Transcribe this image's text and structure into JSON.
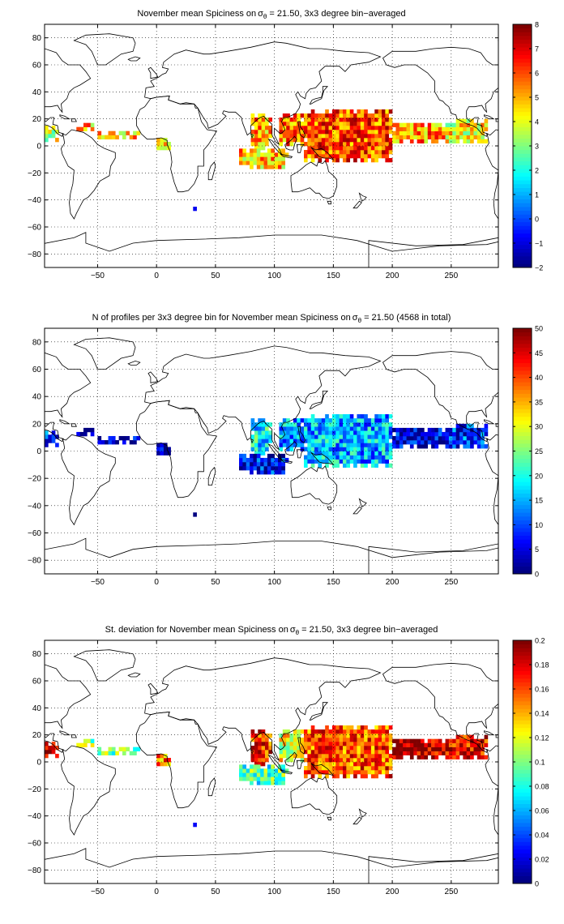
{
  "chart_data": [
    {
      "type": "heatmap",
      "title": "November mean Spiciness on σθ = 21.50, 3x3 degree bin−averaged",
      "title_parts": {
        "prefix": "November mean Spiciness on",
        "symbol": "σ",
        "subscript": "θ",
        "suffix": " = 21.50, 3x3 degree bin−averaged"
      },
      "xlabel": "",
      "ylabel": "",
      "xlim": [
        -95,
        290
      ],
      "ylim": [
        -90,
        90
      ],
      "xticks": [
        -50,
        0,
        50,
        100,
        150,
        200,
        250
      ],
      "yticks": [
        -80,
        -60,
        -40,
        -20,
        0,
        20,
        40,
        60,
        80
      ],
      "grid": true,
      "colorbar": {
        "min": -2,
        "max": 8,
        "ticks": [
          -2,
          -1,
          0,
          1,
          2,
          3,
          4,
          5,
          6,
          7,
          8
        ],
        "colormap": "jet"
      },
      "bin_size_deg": 3,
      "regions": [
        {
          "name": "east-pacific-west-coast",
          "lon": [
            -95,
            -83
          ],
          "lat": [
            3,
            15
          ],
          "value": 4.0
        },
        {
          "name": "caribbean-atlantic",
          "lon": [
            -68,
            -55
          ],
          "lat": [
            11,
            17
          ],
          "value": 5.0
        },
        {
          "name": "equatorial-atlantic",
          "lon": [
            -50,
            -15
          ],
          "lat": [
            5,
            11
          ],
          "value": 4.9
        },
        {
          "name": "gulf-of-guinea",
          "lon": [
            0,
            10
          ],
          "lat": [
            -3,
            6
          ],
          "value": 4.6
        },
        {
          "name": "bay-of-bengal",
          "lon": [
            80,
            98
          ],
          "lat": [
            -3,
            22
          ],
          "value": 5.2
        },
        {
          "name": "eastern-indian-ocean",
          "lon": [
            70,
            110
          ],
          "lat": [
            -17,
            -3
          ],
          "value": 4.9
        },
        {
          "name": "south-china-sea",
          "lon": [
            104,
            125
          ],
          "lat": [
            0,
            22
          ],
          "value": 5.6
        },
        {
          "name": "western-pacific-warm-pool",
          "lon": [
            125,
            200
          ],
          "lat": [
            -12,
            25
          ],
          "value": 6.0
        },
        {
          "name": "central-pacific",
          "lon": [
            200,
            245
          ],
          "lat": [
            2,
            15
          ],
          "value": 5.3
        },
        {
          "name": "eastern-pacific",
          "lon": [
            245,
            280
          ],
          "lat": [
            2,
            20
          ],
          "value": 4.3
        },
        {
          "name": "isolated-south-atlantic",
          "lon": [
            31,
            34
          ],
          "lat": [
            -48,
            -45
          ],
          "value": -2.0
        }
      ]
    },
    {
      "type": "heatmap",
      "title": "N of profiles per 3x3 degree bin for November mean Spiciness on σθ = 21.50 (4568 in total)",
      "title_parts": {
        "prefix": "N of profiles per 3x3 degree bin for November mean Spiciness on",
        "symbol": "σ",
        "subscript": "θ",
        "suffix": " = 21.50 (4568 in total)"
      },
      "total_profiles": 4568,
      "xlabel": "",
      "ylabel": "",
      "xlim": [
        -95,
        290
      ],
      "ylim": [
        -90,
        90
      ],
      "xticks": [
        -50,
        0,
        50,
        100,
        150,
        200,
        250
      ],
      "yticks": [
        -80,
        -60,
        -40,
        -20,
        0,
        20,
        40,
        60,
        80
      ],
      "grid": true,
      "colorbar": {
        "min": 0,
        "max": 50,
        "ticks": [
          0,
          5,
          10,
          15,
          20,
          25,
          30,
          35,
          40,
          45,
          50
        ],
        "colormap": "jet"
      },
      "bin_size_deg": 3,
      "regions": [
        {
          "name": "east-pacific-west-coast",
          "lon": [
            -95,
            -83
          ],
          "lat": [
            3,
            15
          ],
          "value": 9
        },
        {
          "name": "caribbean-atlantic",
          "lon": [
            -68,
            -55
          ],
          "lat": [
            11,
            17
          ],
          "value": 3
        },
        {
          "name": "equatorial-atlantic",
          "lon": [
            -50,
            -15
          ],
          "lat": [
            5,
            11
          ],
          "value": 2
        },
        {
          "name": "gulf-of-guinea",
          "lon": [
            0,
            10
          ],
          "lat": [
            -3,
            6
          ],
          "value": 2
        },
        {
          "name": "bay-of-bengal",
          "lon": [
            80,
            98
          ],
          "lat": [
            -3,
            22
          ],
          "value": 18
        },
        {
          "name": "eastern-indian-ocean",
          "lon": [
            70,
            110
          ],
          "lat": [
            -17,
            -3
          ],
          "value": 6
        },
        {
          "name": "south-china-sea",
          "lon": [
            104,
            125
          ],
          "lat": [
            0,
            22
          ],
          "value": 14
        },
        {
          "name": "western-pacific-warm-pool",
          "lon": [
            125,
            200
          ],
          "lat": [
            -12,
            25
          ],
          "value": 15
        },
        {
          "name": "central-pacific",
          "lon": [
            200,
            245
          ],
          "lat": [
            2,
            15
          ],
          "value": 4
        },
        {
          "name": "eastern-pacific",
          "lon": [
            245,
            280
          ],
          "lat": [
            2,
            20
          ],
          "value": 9
        },
        {
          "name": "isolated-south-atlantic",
          "lon": [
            31,
            34
          ],
          "lat": [
            -48,
            -45
          ],
          "value": 1
        }
      ]
    },
    {
      "type": "heatmap",
      "title": "St. deviation for November mean Spiciness on σθ = 21.50, 3x3 degree bin−averaged",
      "title_parts": {
        "prefix": "St. deviation for November mean Spiciness on",
        "symbol": "σ",
        "subscript": "θ",
        "suffix": " = 21.50, 3x3 degree bin−averaged"
      },
      "xlabel": "",
      "ylabel": "",
      "xlim": [
        -95,
        290
      ],
      "ylim": [
        -90,
        90
      ],
      "xticks": [
        -50,
        0,
        50,
        100,
        150,
        200,
        250
      ],
      "yticks": [
        -80,
        -60,
        -40,
        -20,
        0,
        20,
        40,
        60,
        80
      ],
      "grid": true,
      "colorbar": {
        "min": 0,
        "max": 0.2,
        "ticks": [
          0,
          0.02,
          0.04,
          0.06,
          0.08,
          0.1,
          0.12,
          0.14,
          0.16,
          0.18,
          0.2
        ],
        "colormap": "jet"
      },
      "bin_size_deg": 3,
      "regions": [
        {
          "name": "east-pacific-west-coast",
          "lon": [
            -95,
            -83
          ],
          "lat": [
            3,
            15
          ],
          "value": 0.19
        },
        {
          "name": "caribbean-atlantic",
          "lon": [
            -68,
            -55
          ],
          "lat": [
            11,
            17
          ],
          "value": 0.1
        },
        {
          "name": "equatorial-atlantic",
          "lon": [
            -50,
            -15
          ],
          "lat": [
            5,
            11
          ],
          "value": 0.1
        },
        {
          "name": "gulf-of-guinea",
          "lon": [
            0,
            10
          ],
          "lat": [
            -3,
            6
          ],
          "value": 0.15
        },
        {
          "name": "bay-of-bengal",
          "lon": [
            80,
            98
          ],
          "lat": [
            -3,
            22
          ],
          "value": 0.17
        },
        {
          "name": "eastern-indian-ocean",
          "lon": [
            70,
            110
          ],
          "lat": [
            -17,
            -3
          ],
          "value": 0.09
        },
        {
          "name": "south-china-sea",
          "lon": [
            104,
            125
          ],
          "lat": [
            0,
            22
          ],
          "value": 0.12
        },
        {
          "name": "western-pacific-warm-pool",
          "lon": [
            125,
            200
          ],
          "lat": [
            -12,
            25
          ],
          "value": 0.16
        },
        {
          "name": "central-pacific",
          "lon": [
            200,
            245
          ],
          "lat": [
            2,
            15
          ],
          "value": 0.19
        },
        {
          "name": "eastern-pacific",
          "lon": [
            245,
            280
          ],
          "lat": [
            2,
            20
          ],
          "value": 0.18
        },
        {
          "name": "isolated-south-atlantic",
          "lon": [
            31,
            34
          ],
          "lat": [
            -48,
            -45
          ],
          "value": 0.0
        }
      ]
    }
  ]
}
